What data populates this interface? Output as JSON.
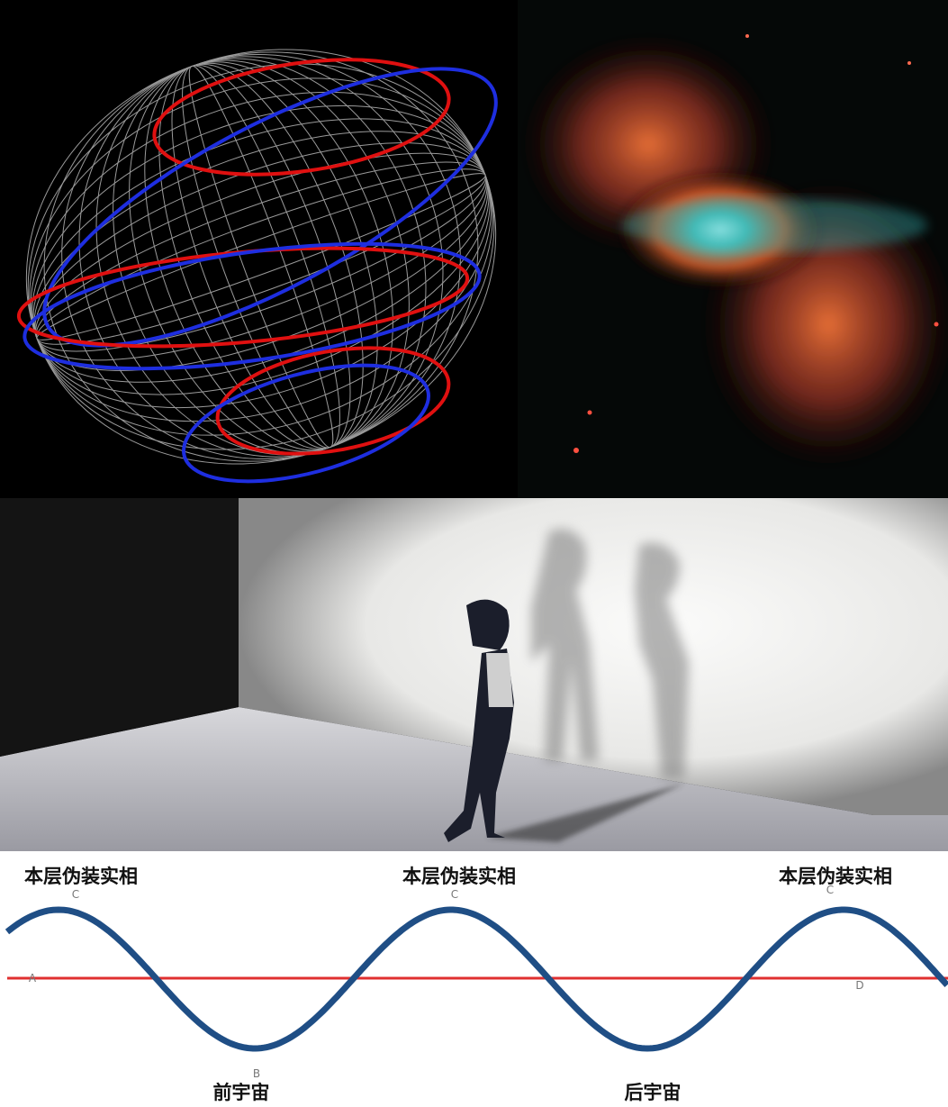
{
  "diagram": {
    "peak_labels": [
      "本层伪装实相",
      "本层伪装实相",
      "本层伪装实相"
    ],
    "trough_labels": [
      "前宇宙",
      "后宇宙"
    ],
    "point_letters": [
      "C",
      "C",
      "C",
      "A",
      "B",
      "D"
    ]
  }
}
